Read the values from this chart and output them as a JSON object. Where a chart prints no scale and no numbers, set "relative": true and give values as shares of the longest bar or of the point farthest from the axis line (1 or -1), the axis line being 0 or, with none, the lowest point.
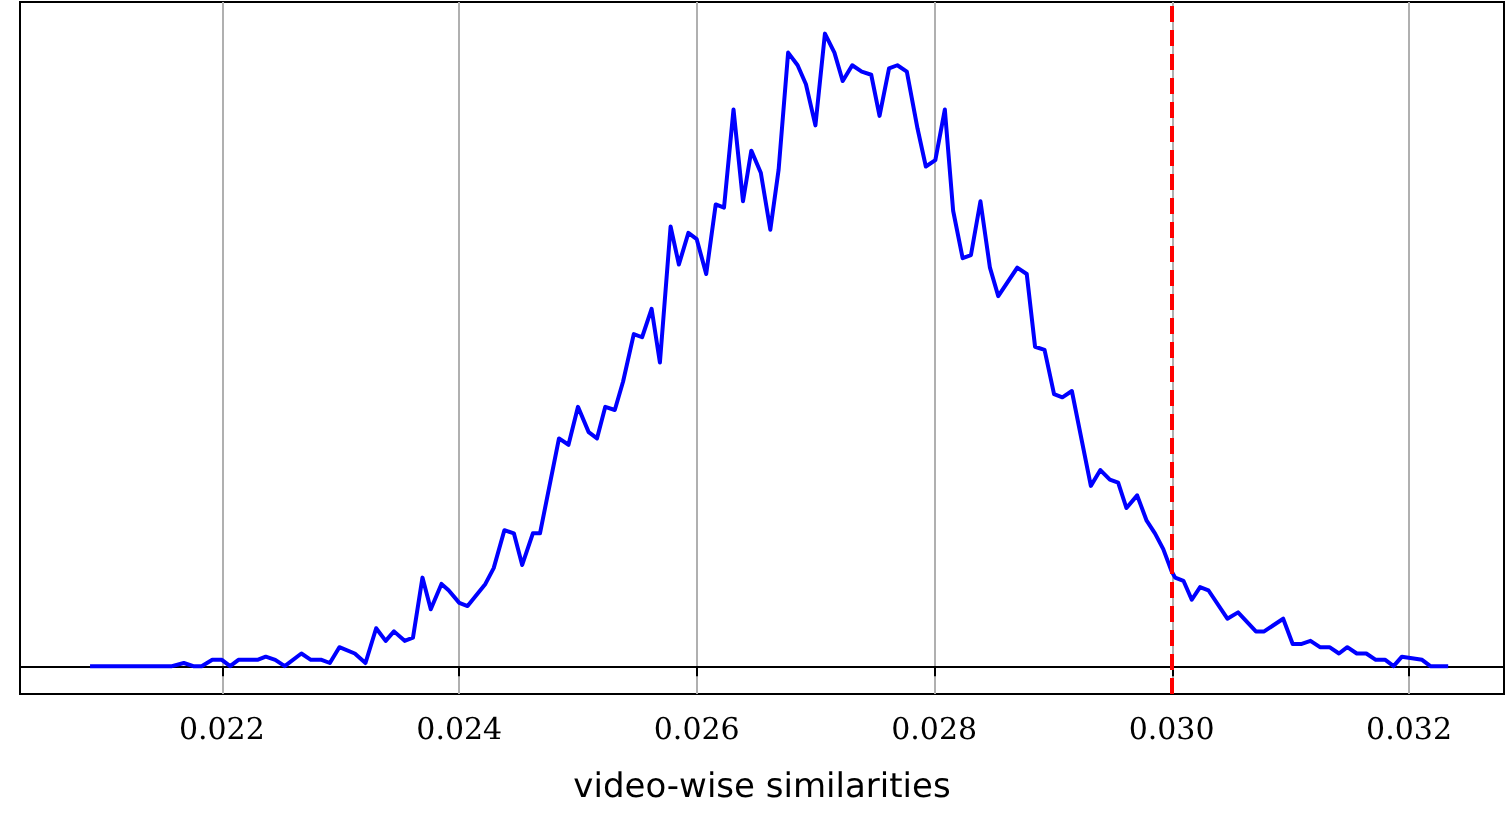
{
  "chart_data": {
    "type": "line",
    "xlabel": "video-wise similarities",
    "relative": true,
    "grid": "x",
    "marker": "none",
    "line_style": "solid",
    "xlim": [
      0.0203,
      0.0328
    ],
    "xticks": [
      {
        "value": 0.022,
        "label": "0.022"
      },
      {
        "value": 0.024,
        "label": "0.024"
      },
      {
        "value": 0.026,
        "label": "0.026"
      },
      {
        "value": 0.028,
        "label": "0.028"
      },
      {
        "value": 0.03,
        "label": "0.030"
      },
      {
        "value": 0.032,
        "label": "0.032"
      }
    ],
    "ref_lines": [
      {
        "axis": "x",
        "value": 0.03,
        "color": "#ff0000",
        "line_style": "dashed"
      }
    ],
    "series": [
      {
        "color": "#0000ff",
        "x": [
          0.02089,
          0.02158,
          0.02168,
          0.02176,
          0.02183,
          0.02192,
          0.022,
          0.02207,
          0.02214,
          0.0223,
          0.02237,
          0.02245,
          0.02253,
          0.02267,
          0.02275,
          0.02284,
          0.02291,
          0.02299,
          0.02312,
          0.02321,
          0.0233,
          0.02338,
          0.02345,
          0.02354,
          0.02361,
          0.02369,
          0.02376,
          0.02385,
          0.02391,
          0.024,
          0.02407,
          0.02422,
          0.02429,
          0.02438,
          0.02446,
          0.02453,
          0.02462,
          0.02468,
          0.02484,
          0.02492,
          0.025,
          0.02509,
          0.02516,
          0.02523,
          0.02531,
          0.02538,
          0.02547,
          0.02554,
          0.02562,
          0.02569,
          0.02578,
          0.02585,
          0.02593,
          0.026,
          0.02608,
          0.02616,
          0.02623,
          0.02631,
          0.02639,
          0.02646,
          0.02654,
          0.02662,
          0.02669,
          0.02677,
          0.02685,
          0.02692,
          0.027,
          0.02708,
          0.02716,
          0.02723,
          0.02731,
          0.02739,
          0.02747,
          0.02754,
          0.02762,
          0.02769,
          0.02777,
          0.02786,
          0.02793,
          0.02801,
          0.02809,
          0.02816,
          0.02824,
          0.02831,
          0.02839,
          0.02847,
          0.02854,
          0.0287,
          0.02878,
          0.02885,
          0.02893,
          0.02901,
          0.02908,
          0.02916,
          0.02932,
          0.0294,
          0.02948,
          0.02955,
          0.02962,
          0.02971,
          0.02979,
          0.02986,
          0.02993,
          0.03,
          0.03003,
          0.0301,
          0.03017,
          0.03024,
          0.03031,
          0.03047,
          0.03056,
          0.03071,
          0.03078,
          0.03094,
          0.03102,
          0.03109,
          0.03117,
          0.03125,
          0.03133,
          0.03141,
          0.03148,
          0.03156,
          0.03164,
          0.03172,
          0.0318,
          0.03187,
          0.03194,
          0.03211,
          0.03218,
          0.03233
        ],
        "values": [
          0,
          0,
          0.005,
          0,
          0,
          0.01,
          0.01,
          0,
          0.01,
          0.01,
          0.015,
          0.01,
          0,
          0.02,
          0.01,
          0.01,
          0.005,
          0.03,
          0.02,
          0.005,
          0.06,
          0.04,
          0.055,
          0.04,
          0.045,
          0.14,
          0.09,
          0.13,
          0.12,
          0.1,
          0.095,
          0.13,
          0.155,
          0.215,
          0.21,
          0.16,
          0.21,
          0.21,
          0.36,
          0.35,
          0.41,
          0.37,
          0.36,
          0.41,
          0.405,
          0.45,
          0.525,
          0.52,
          0.565,
          0.48,
          0.695,
          0.635,
          0.685,
          0.675,
          0.62,
          0.73,
          0.725,
          0.88,
          0.735,
          0.815,
          0.78,
          0.69,
          0.785,
          0.97,
          0.95,
          0.92,
          0.855,
          1,
          0.97,
          0.925,
          0.95,
          0.94,
          0.935,
          0.87,
          0.945,
          0.95,
          0.94,
          0.85,
          0.79,
          0.8,
          0.88,
          0.72,
          0.645,
          0.65,
          0.735,
          0.63,
          0.585,
          0.63,
          0.62,
          0.505,
          0.5,
          0.43,
          0.425,
          0.435,
          0.285,
          0.31,
          0.295,
          0.29,
          0.25,
          0.27,
          0.23,
          0.21,
          0.185,
          0.15,
          0.14,
          0.135,
          0.105,
          0.125,
          0.12,
          0.075,
          0.085,
          0.055,
          0.055,
          0.075,
          0.035,
          0.035,
          0.04,
          0.03,
          0.03,
          0.02,
          0.03,
          0.02,
          0.02,
          0.01,
          0.01,
          0,
          0.015,
          0.01,
          0,
          0
        ]
      }
    ]
  }
}
